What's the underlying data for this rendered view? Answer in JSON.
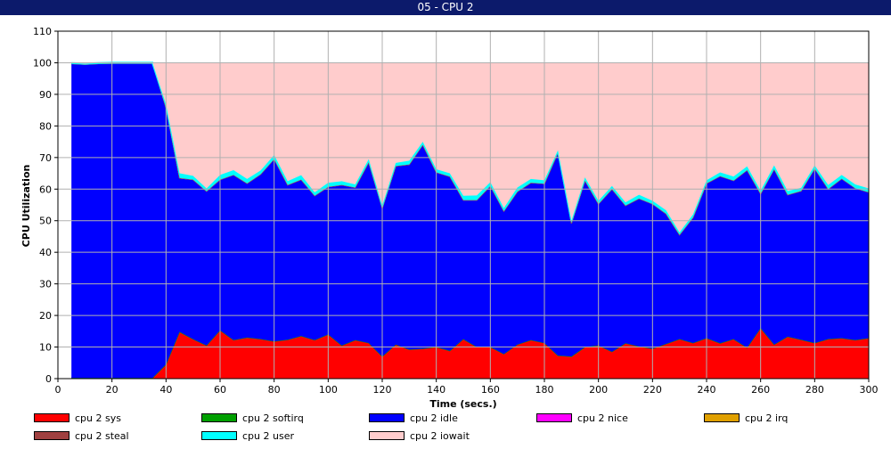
{
  "window": {
    "title": "05 - CPU 2"
  },
  "chart_data": {
    "type": "area",
    "stacked": true,
    "xlabel": "Time (secs.)",
    "ylabel": "CPU Utilization",
    "xlim": [
      0,
      300
    ],
    "ylim": [
      0,
      110
    ],
    "x_ticks": [
      0,
      20,
      40,
      60,
      80,
      100,
      120,
      140,
      160,
      180,
      200,
      220,
      240,
      260,
      280,
      300
    ],
    "y_ticks": [
      0,
      10,
      20,
      30,
      40,
      50,
      60,
      70,
      80,
      90,
      100,
      110
    ],
    "grid": true,
    "legend_position": "bottom",
    "x": [
      5,
      10,
      15,
      20,
      25,
      30,
      35,
      40,
      45,
      50,
      55,
      60,
      65,
      70,
      75,
      80,
      85,
      90,
      95,
      100,
      105,
      110,
      115,
      120,
      125,
      130,
      135,
      140,
      145,
      150,
      155,
      160,
      165,
      170,
      175,
      180,
      185,
      190,
      195,
      200,
      205,
      210,
      215,
      220,
      225,
      230,
      235,
      240,
      245,
      250,
      255,
      260,
      265,
      270,
      275,
      280,
      285,
      290,
      295,
      300
    ],
    "series": [
      {
        "name": "cpu 2 sys",
        "color": "#ff0000",
        "values": [
          0.2,
          0.2,
          0.2,
          0.2,
          0.2,
          0.2,
          0.2,
          4.5,
          14.8,
          12.5,
          10.5,
          15.3,
          12.2,
          13.0,
          12.5,
          11.8,
          12.3,
          13.5,
          12.2,
          14.0,
          10.5,
          12.2,
          11.3,
          7.0,
          10.8,
          9.2,
          9.5,
          10.0,
          8.8,
          12.5,
          10.0,
          10.0,
          7.8,
          10.8,
          12.2,
          11.3,
          7.3,
          7.0,
          10.0,
          10.5,
          8.5,
          11.2,
          10.2,
          9.5,
          11.0,
          12.5,
          11.3,
          12.8,
          11.2,
          12.5,
          9.8,
          16.0,
          10.8,
          13.3,
          12.3,
          11.3,
          12.5,
          12.8,
          12.2,
          12.8
        ]
      },
      {
        "name": "cpu 2 softirq",
        "color": "#00a000",
        "values": [
          0,
          0,
          0,
          0,
          0,
          0,
          0,
          0,
          0,
          0,
          0,
          0,
          0,
          0,
          0,
          0,
          0,
          0,
          0,
          0,
          0,
          0,
          0,
          0,
          0,
          0,
          0,
          0,
          0,
          0,
          0,
          0,
          0,
          0,
          0,
          0,
          0,
          0,
          0,
          0,
          0,
          0,
          0,
          0,
          0,
          0,
          0,
          0,
          0,
          0,
          0,
          0,
          0,
          0,
          0,
          0,
          0,
          0,
          0,
          0
        ]
      },
      {
        "name": "cpu 2 idle",
        "color": "#0000ff",
        "values": [
          99.5,
          99.3,
          99.5,
          99.6,
          99.6,
          99.6,
          99.6,
          81.3,
          48.7,
          50.5,
          48.8,
          47.7,
          52.3,
          48.8,
          52.2,
          57.7,
          49.0,
          49.5,
          45.7,
          46.7,
          50.8,
          48.3,
          57.2,
          47.0,
          56.5,
          58.6,
          64.5,
          55.3,
          55.2,
          44.0,
          46.5,
          51.0,
          45.2,
          48.4,
          49.8,
          50.4,
          64.2,
          42.2,
          52.7,
          44.8,
          51.5,
          43.6,
          46.8,
          45.8,
          41.2,
          33.0,
          39.7,
          49.0,
          52.9,
          50.2,
          56.2,
          42.5,
          55.5,
          44.9,
          47.1,
          55.2,
          47.5,
          50.5,
          48.1,
          46.2
        ]
      },
      {
        "name": "cpu 2 nice",
        "color": "#ff00ff",
        "values": [
          0,
          0,
          0,
          0,
          0,
          0,
          0,
          0,
          0,
          0,
          0,
          0,
          0,
          0,
          0,
          0,
          0,
          0,
          0,
          0,
          0,
          0,
          0,
          0,
          0,
          0,
          0,
          0,
          0,
          0,
          0,
          0,
          0,
          0,
          0,
          0,
          0,
          0,
          0,
          0,
          0,
          0,
          0,
          0,
          0,
          0,
          0,
          0,
          0,
          0,
          0,
          0,
          0,
          0,
          0,
          0,
          0,
          0,
          0,
          0
        ]
      },
      {
        "name": "cpu 2 irq",
        "color": "#e0a000",
        "values": [
          0,
          0,
          0,
          0,
          0,
          0,
          0,
          0,
          0,
          0,
          0,
          0,
          0,
          0,
          0,
          0,
          0,
          0,
          0,
          0,
          0,
          0,
          0,
          0,
          0,
          0,
          0,
          0,
          0,
          0,
          0,
          0,
          0,
          0,
          0,
          0,
          0,
          0,
          0,
          0,
          0,
          0,
          0,
          0,
          0,
          0,
          0,
          0,
          0,
          0,
          0,
          0,
          0,
          0,
          0,
          0,
          0,
          0,
          0,
          0
        ]
      },
      {
        "name": "cpu 2 steal",
        "color": "#a04040",
        "values": [
          0,
          0,
          0,
          0,
          0,
          0,
          0,
          0,
          0,
          0,
          0,
          0,
          0,
          0,
          0,
          0,
          0,
          0,
          0,
          0,
          0,
          0,
          0,
          0,
          0,
          0,
          0,
          0,
          0,
          0,
          0,
          0,
          0,
          0,
          0,
          0,
          0,
          0,
          0,
          0,
          0,
          0,
          0,
          0,
          0,
          0,
          0,
          0,
          0,
          0,
          0,
          0,
          0,
          0,
          0,
          0,
          0,
          0,
          0,
          0
        ]
      },
      {
        "name": "cpu 2 user",
        "color": "#00ffff",
        "values": [
          0.2,
          0.2,
          0.2,
          0.2,
          0.2,
          0.2,
          0.2,
          1.0,
          1.5,
          1.2,
          0.9,
          1.5,
          1.5,
          1.4,
          1.2,
          1.3,
          1.2,
          1.4,
          1.1,
          1.3,
          1.2,
          1.0,
          1.0,
          0.8,
          1.0,
          1.2,
          1.0,
          1.0,
          1.0,
          1.4,
          1.5,
          1.2,
          1.0,
          1.3,
          1.2,
          1.1,
          0.8,
          0.8,
          1.0,
          1.0,
          1.0,
          1.0,
          1.2,
          1.0,
          1.1,
          0.8,
          1.0,
          1.0,
          1.2,
          1.3,
          1.2,
          1.0,
          1.2,
          1.2,
          1.0,
          1.0,
          1.3,
          1.2,
          1.2,
          1.2
        ]
      },
      {
        "name": "cpu 2 iowait",
        "color": "#ffcccc",
        "values": [
          0.1,
          0.3,
          0.1,
          0,
          0,
          0,
          0,
          13.2,
          35.0,
          35.8,
          39.8,
          35.5,
          34.0,
          36.8,
          34.1,
          29.2,
          37.5,
          35.6,
          41.0,
          38.0,
          37.5,
          38.5,
          30.5,
          45.2,
          31.7,
          31.0,
          25.0,
          33.7,
          35.0,
          42.1,
          42.0,
          37.8,
          46.0,
          39.5,
          36.8,
          37.2,
          27.7,
          50.0,
          36.3,
          43.7,
          39.0,
          44.2,
          41.8,
          43.7,
          46.7,
          53.7,
          48.0,
          37.2,
          34.7,
          36.0,
          32.8,
          40.5,
          32.5,
          40.6,
          39.6,
          32.5,
          38.7,
          35.5,
          38.5,
          39.8
        ]
      }
    ],
    "legend_order": [
      "cpu 2 sys",
      "cpu 2 softirq",
      "cpu 2 idle",
      "cpu 2 nice",
      "cpu 2 irq",
      "cpu 2 steal",
      "cpu 2 user",
      "cpu 2 iowait"
    ]
  }
}
